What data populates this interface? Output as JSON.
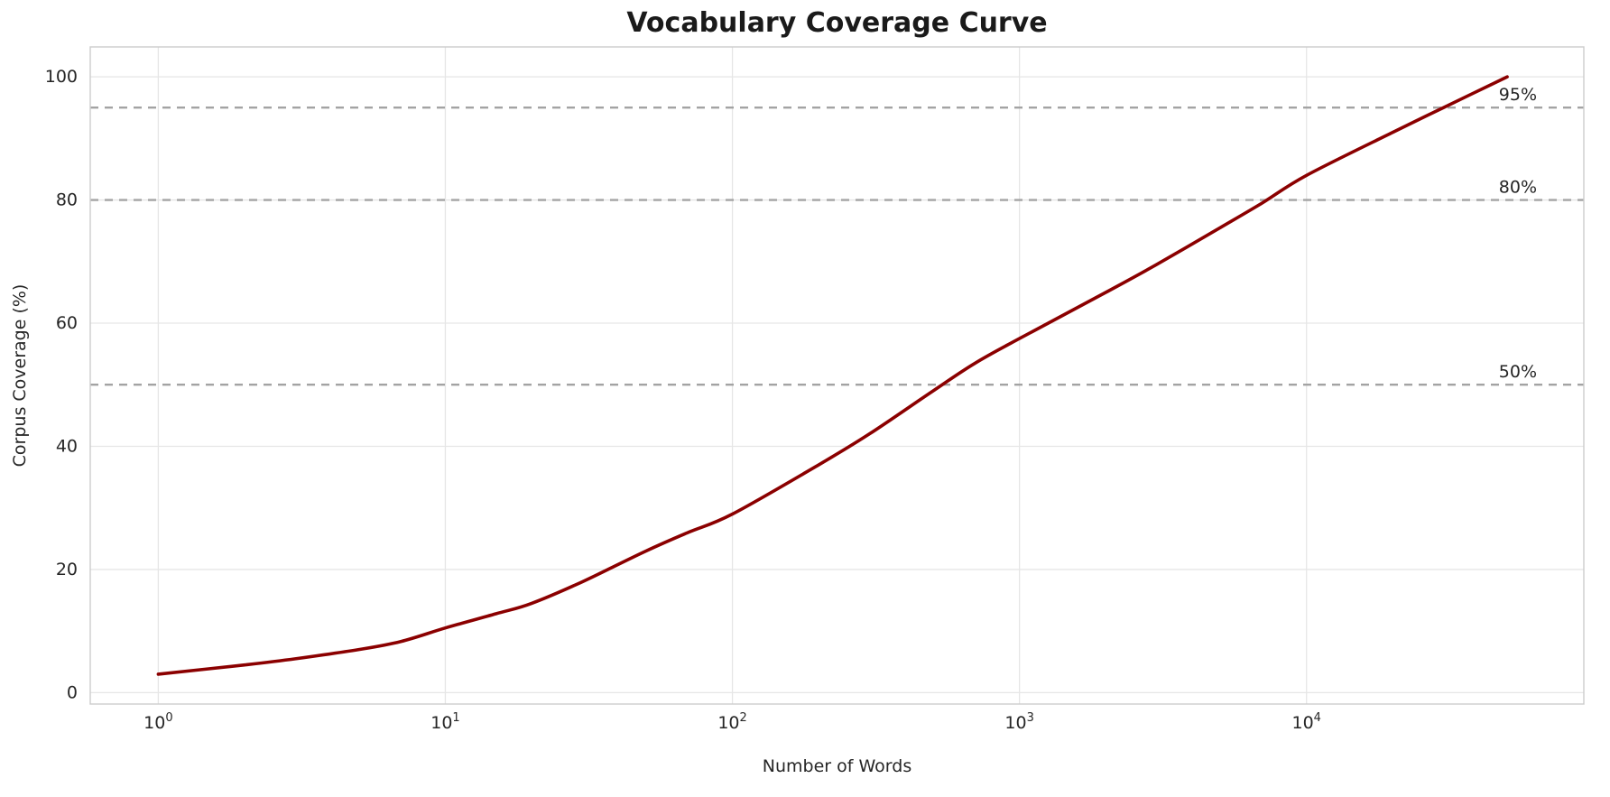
{
  "chart": {
    "title": "Vocabulary Coverage Curve",
    "xlabel": "Number of Words",
    "ylabel": "Corpus Coverage (%)"
  },
  "chart_data": {
    "type": "line",
    "title": "Vocabulary Coverage Curve",
    "xlabel": "Number of Words",
    "ylabel": "Corpus Coverage (%)",
    "x_scale": "log",
    "grid": true,
    "xlim_log10": [
      -0.237,
      4.966
    ],
    "ylim": [
      -1.85,
      104.85
    ],
    "x_ticks": [
      {
        "base": "10",
        "exponent": "0",
        "value": 1
      },
      {
        "base": "10",
        "exponent": "1",
        "value": 10
      },
      {
        "base": "10",
        "exponent": "2",
        "value": 100
      },
      {
        "base": "10",
        "exponent": "3",
        "value": 1000
      },
      {
        "base": "10",
        "exponent": "4",
        "value": 10000
      }
    ],
    "y_ticks": [
      0,
      20,
      40,
      60,
      80,
      100
    ],
    "series": [
      {
        "name": "corpus-coverage-curve",
        "x": [
          1,
          2,
          3,
          5,
          7,
          10,
          15,
          20,
          30,
          50,
          70,
          100,
          200,
          300,
          500,
          700,
          1000,
          2000,
          3000,
          5000,
          7000,
          10000,
          20000,
          30000,
          50000
        ],
        "y": [
          3,
          4.5,
          5.5,
          7,
          8.3,
          10.5,
          12.8,
          14.5,
          18,
          23,
          26,
          29,
          37,
          42,
          49,
          53.5,
          57.5,
          65,
          69.5,
          75.5,
          79.5,
          84,
          91,
          95,
          100
        ]
      }
    ],
    "thresholds": [
      {
        "value": 50,
        "label": "50%"
      },
      {
        "value": 80,
        "label": "80%"
      },
      {
        "value": 95,
        "label": "95%"
      }
    ],
    "colors": {
      "line": "#8b0000",
      "threshold_line": "#a3a3a3",
      "grid": "#e6e6e6",
      "spine": "#cccccc",
      "text": "#262626"
    }
  }
}
